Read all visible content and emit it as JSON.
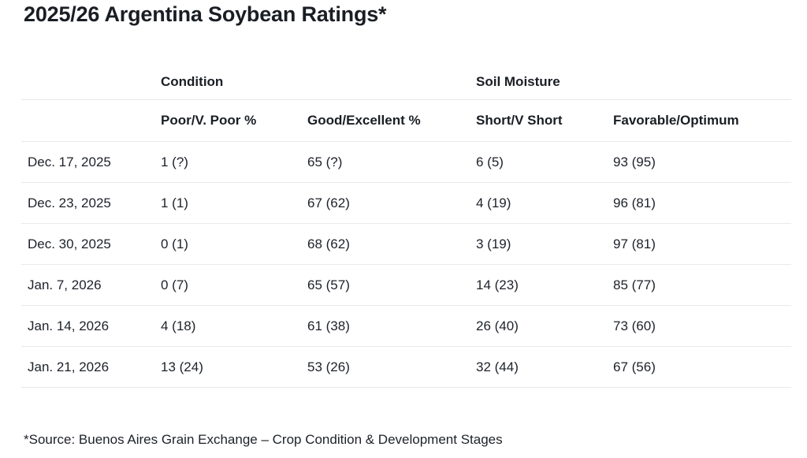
{
  "page": {
    "title": "2025/26 Argentina Soybean Ratings*",
    "source_note": "*Source: Buenos Aires Grain Exchange – Crop Condition & Development Stages",
    "colors": {
      "text": "#1d2129",
      "heading_text": "#1a1e24",
      "divider": "#e8e9eb",
      "background": "#ffffff"
    }
  },
  "chart_data": {
    "type": "table",
    "title": "2025/26 Argentina Soybean Ratings*",
    "group_headers": [
      {
        "label": "Condition",
        "span": 2
      },
      {
        "label": "Soil Moisture",
        "span": 2
      }
    ],
    "columns": [
      "",
      "Poor/V. Poor %",
      "Good/Excellent %",
      "Short/V Short",
      "Favorable/Optimum"
    ],
    "value_format": "current (previous)",
    "rows": [
      {
        "date": "Dec. 17, 2025",
        "poor_vpoor": "1 (?)",
        "good_excellent": "65 (?)",
        "short_vshort": "6 (5)",
        "favorable_optimum": "93 (95)"
      },
      {
        "date": "Dec. 23, 2025",
        "poor_vpoor": "1 (1)",
        "good_excellent": "67 (62)",
        "short_vshort": "4 (19)",
        "favorable_optimum": "96 (81)"
      },
      {
        "date": "Dec. 30, 2025",
        "poor_vpoor": "0 (1)",
        "good_excellent": "68 (62)",
        "short_vshort": "3 (19)",
        "favorable_optimum": "97 (81)"
      },
      {
        "date": "Jan. 7, 2026",
        "poor_vpoor": "0 (7)",
        "good_excellent": "65 (57)",
        "short_vshort": "14 (23)",
        "favorable_optimum": "85 (77)"
      },
      {
        "date": "Jan. 14, 2026",
        "poor_vpoor": "4 (18)",
        "good_excellent": "61 (38)",
        "short_vshort": "26 (40)",
        "favorable_optimum": "73 (60)"
      },
      {
        "date": "Jan. 21, 2026",
        "poor_vpoor": "13 (24)",
        "good_excellent": "53 (26)",
        "short_vshort": "32 (44)",
        "favorable_optimum": "67 (56)"
      }
    ]
  }
}
